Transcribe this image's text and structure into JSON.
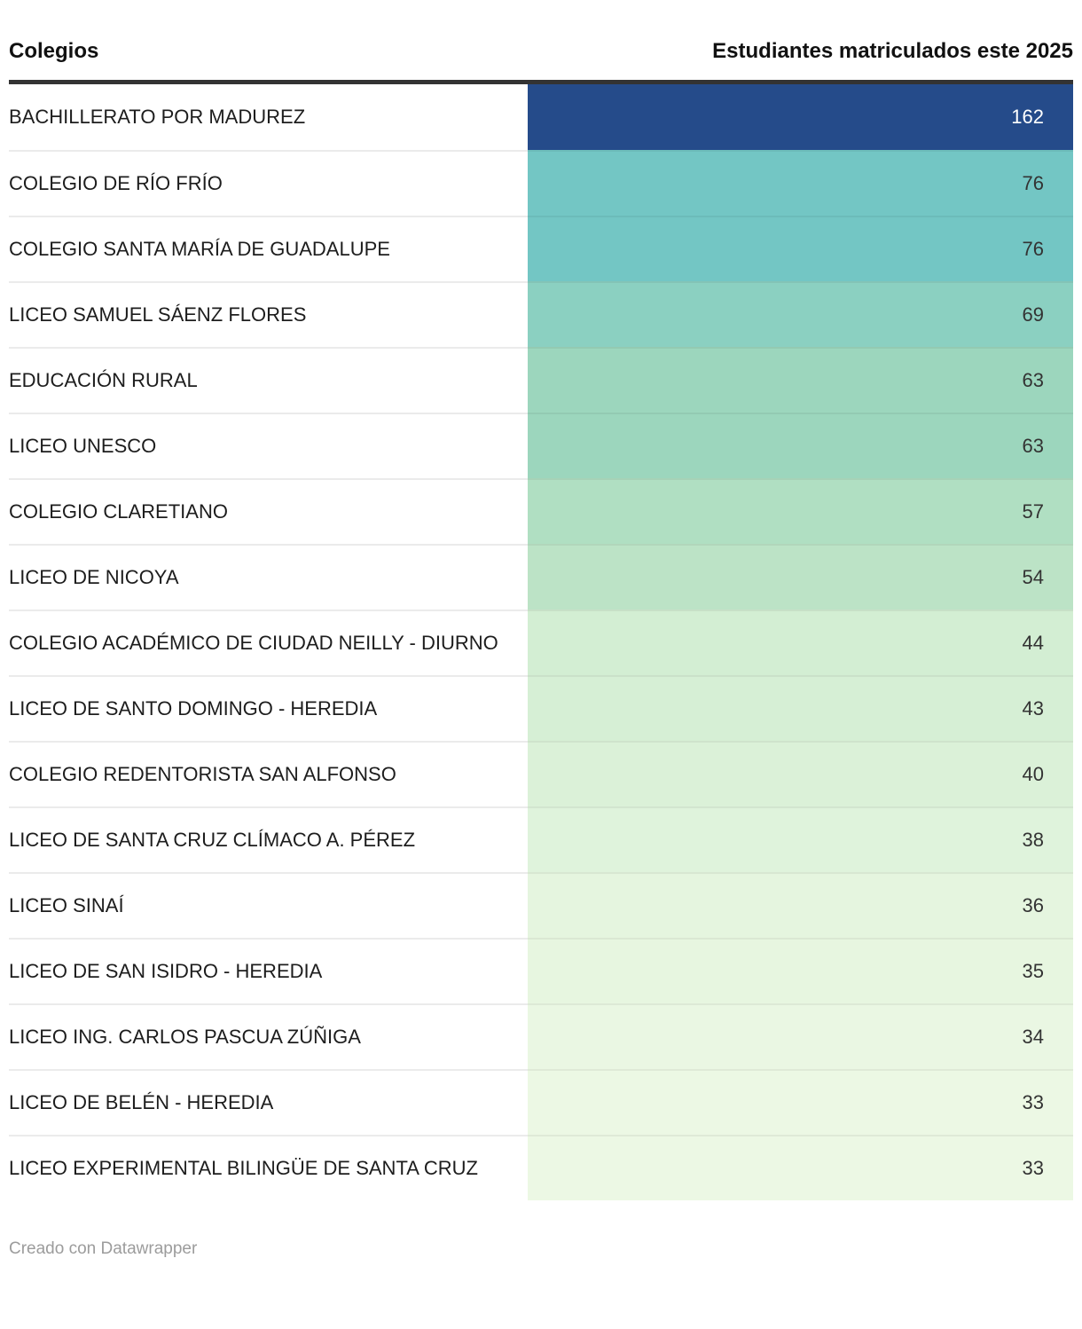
{
  "header": {
    "col1": "Colegios",
    "col2": "Estudiantes matriculados este 2025"
  },
  "footer": {
    "credit": "Creado con Datawrapper"
  },
  "colors": {
    "header_rule": "#333333",
    "label_divider": "#ebebeb",
    "value_text_dark": "#333333",
    "value_text_light": "#ffffff",
    "max_cell": "#254b8a",
    "min_cell": "#ecf8e4"
  },
  "chart_data": {
    "type": "table",
    "title": "",
    "subtitle": "",
    "columns": [
      "Colegios",
      "Estudiantes matriculados este 2025"
    ],
    "value_range": [
      33,
      162
    ],
    "legend_position": "none",
    "grid": "horizontal",
    "rows": [
      {
        "label": "BACHILLERATO POR MADUREZ",
        "value": 162,
        "bg": "#254b8a",
        "fg": "#ffffff"
      },
      {
        "label": "COLEGIO DE RÍO FRÍO",
        "value": 76,
        "bg": "#73c6c4",
        "fg": "#333333"
      },
      {
        "label": "COLEGIO SANTA MARÍA DE GUADALUPE",
        "value": 76,
        "bg": "#73c6c4",
        "fg": "#333333"
      },
      {
        "label": "LICEO SAMUEL SÁENZ FLORES",
        "value": 69,
        "bg": "#8bd0c1",
        "fg": "#333333"
      },
      {
        "label": "EDUCACIÓN RURAL",
        "value": 63,
        "bg": "#9cd6bd",
        "fg": "#333333"
      },
      {
        "label": "LICEO UNESCO",
        "value": 63,
        "bg": "#9cd6bd",
        "fg": "#333333"
      },
      {
        "label": "COLEGIO CLARETIANO",
        "value": 57,
        "bg": "#b0dfc2",
        "fg": "#333333"
      },
      {
        "label": "LICEO DE NICOYA",
        "value": 54,
        "bg": "#bce3c6",
        "fg": "#333333"
      },
      {
        "label": "COLEGIO ACADÉMICO DE CIUDAD NEILLY - DIURNO",
        "value": 44,
        "bg": "#d3eed3",
        "fg": "#333333"
      },
      {
        "label": "LICEO DE SANTO DOMINGO - HEREDIA",
        "value": 43,
        "bg": "#d6efd5",
        "fg": "#333333"
      },
      {
        "label": "COLEGIO REDENTORISTA SAN ALFONSO",
        "value": 40,
        "bg": "#dbf1d8",
        "fg": "#333333"
      },
      {
        "label": "LICEO DE SANTA CRUZ CLÍMACO A. PÉREZ",
        "value": 38,
        "bg": "#dff3dc",
        "fg": "#333333"
      },
      {
        "label": "LICEO SINAÍ",
        "value": 36,
        "bg": "#e5f5df",
        "fg": "#333333"
      },
      {
        "label": "LICEO DE SAN ISIDRO - HEREDIA",
        "value": 35,
        "bg": "#e7f6e0",
        "fg": "#333333"
      },
      {
        "label": "LICEO ING. CARLOS PASCUA ZÚÑIGA",
        "value": 34,
        "bg": "#eaf7e3",
        "fg": "#333333"
      },
      {
        "label": "LICEO DE BELÉN - HEREDIA",
        "value": 33,
        "bg": "#ecf8e4",
        "fg": "#333333"
      },
      {
        "label": "LICEO EXPERIMENTAL BILINGÜE DE SANTA CRUZ",
        "value": 33,
        "bg": "#ecf8e4",
        "fg": "#333333"
      }
    ]
  }
}
